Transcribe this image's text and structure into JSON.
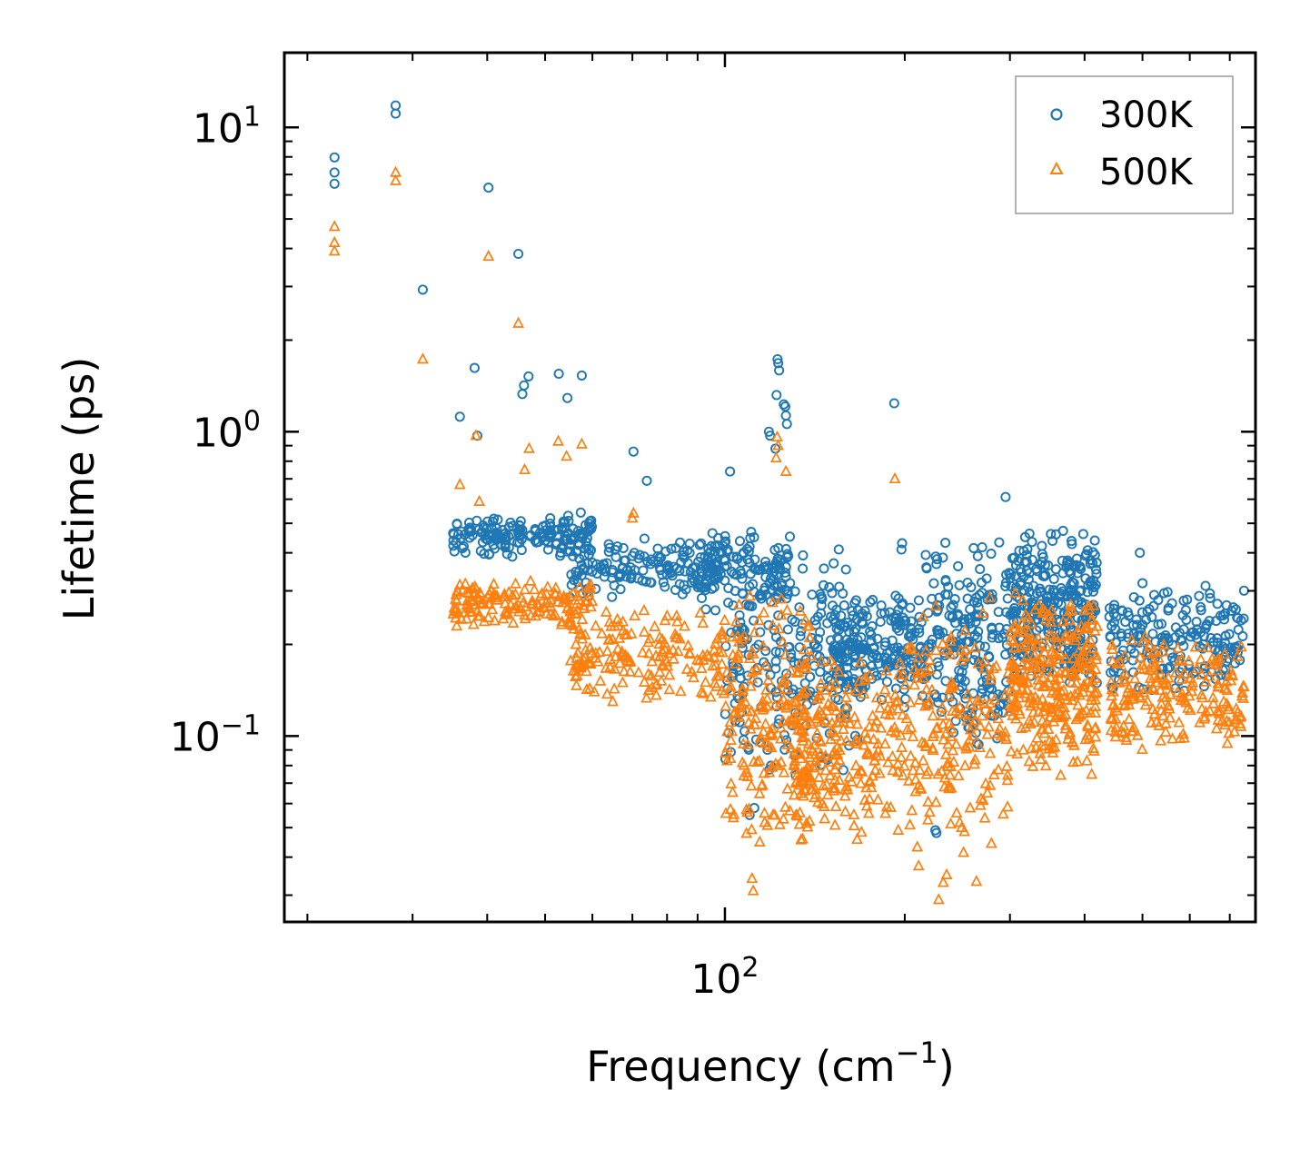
{
  "chart_data": {
    "type": "scatter",
    "title": "",
    "xlabel": "Frequency (cm",
    "xlabel_sup": "−1",
    "xlabel_suffix": ")",
    "ylabel": "Lifetime (ps)",
    "xscale": "log",
    "yscale": "log",
    "xlim": [
      18.3,
      773
    ],
    "ylim": [
      0.0245,
      17.6
    ],
    "xticks": [
      {
        "base": "10",
        "exp": "2",
        "value": 100
      }
    ],
    "yticks": [
      {
        "base": "10",
        "exp": "1",
        "value": 10
      },
      {
        "base": "10",
        "exp": "0",
        "value": 1
      },
      {
        "base": "10",
        "exp": "−1",
        "value": 0.1
      }
    ],
    "legend": {
      "position": "top-right"
    },
    "series": [
      {
        "name": "300K",
        "marker": "circle",
        "color": "#1f77b4",
        "points": [
          [
            22.2,
            7.97
          ],
          [
            22.2,
            7.11
          ],
          [
            22.2,
            6.53
          ],
          [
            28.1,
            11.8
          ],
          [
            28.1,
            11.1
          ],
          [
            31.2,
            2.93
          ],
          [
            38.1,
            1.62
          ],
          [
            40.2,
            6.34
          ],
          [
            45.1,
            3.84
          ],
          [
            45.8,
            1.33
          ],
          [
            46.1,
            1.42
          ],
          [
            46.9,
            1.52
          ],
          [
            52.7,
            1.55
          ],
          [
            54.5,
            1.29
          ],
          [
            57.6,
            1.53
          ],
          [
            36.0,
            1.12
          ],
          [
            38.5,
            0.97
          ],
          [
            70.3,
            0.86
          ],
          [
            74.0,
            0.69
          ],
          [
            102.0,
            0.74
          ],
          [
            122.5,
            1.73
          ],
          [
            122.8,
            1.68
          ],
          [
            123.2,
            1.59
          ],
          [
            122.0,
            1.32
          ],
          [
            125.5,
            1.23
          ],
          [
            126.2,
            1.21
          ],
          [
            126.5,
            1.13
          ],
          [
            127.0,
            1.06
          ],
          [
            118.5,
            1.0
          ],
          [
            119.0,
            0.97
          ],
          [
            121.5,
            0.88
          ],
          [
            192.0,
            1.24
          ],
          [
            295.0,
            0.61
          ],
          [
            495.0,
            0.4
          ],
          [
            198.0,
            0.43
          ],
          [
            197.5,
            0.41
          ],
          [
            225.0,
            0.049
          ],
          [
            226.0,
            0.048
          ],
          [
            110.0,
            0.055
          ],
          [
            112.0,
            0.058
          ]
        ],
        "bands": [
          {
            "x": [
              35,
              60
            ],
            "ylo": 0.38,
            "yhi": 0.55,
            "n": 170
          },
          {
            "x": [
              55,
              100
            ],
            "ylo": 0.28,
            "yhi": 0.45,
            "n": 160
          },
          {
            "x": [
              90,
              130
            ],
            "ylo": 0.25,
            "yhi": 0.5,
            "n": 120
          },
          {
            "x": [
              100,
              170
            ],
            "ylo": 0.07,
            "yhi": 0.45,
            "n": 230
          },
          {
            "x": [
              150,
              215
            ],
            "ylo": 0.12,
            "yhi": 0.3,
            "n": 190
          },
          {
            "x": [
              215,
              300
            ],
            "ylo": 0.085,
            "yhi": 0.48,
            "n": 200
          },
          {
            "x": [
              300,
              420
            ],
            "ylo": 0.14,
            "yhi": 0.5,
            "n": 300
          },
          {
            "x": [
              440,
              740
            ],
            "ylo": 0.13,
            "yhi": 0.34,
            "n": 200
          }
        ]
      },
      {
        "name": "500K",
        "marker": "triangle",
        "color": "#ff7f0e",
        "points": [
          [
            22.2,
            4.72
          ],
          [
            22.2,
            4.18
          ],
          [
            22.2,
            3.92
          ],
          [
            28.1,
            7.11
          ],
          [
            28.1,
            6.68
          ],
          [
            31.2,
            1.73
          ],
          [
            38.3,
            0.97
          ],
          [
            38.8,
            0.59
          ],
          [
            40.2,
            3.77
          ],
          [
            45.1,
            2.27
          ],
          [
            46.2,
            0.75
          ],
          [
            47.0,
            0.88
          ],
          [
            52.6,
            0.93
          ],
          [
            54.3,
            0.83
          ],
          [
            57.6,
            0.91
          ],
          [
            36.0,
            0.67
          ],
          [
            70.3,
            0.54
          ],
          [
            70.0,
            0.52
          ],
          [
            192.5,
            0.7
          ],
          [
            122.3,
            0.96
          ],
          [
            122.8,
            0.9
          ],
          [
            121.8,
            0.82
          ],
          [
            126.5,
            0.74
          ],
          [
            111.0,
            0.034
          ],
          [
            111.5,
            0.031
          ],
          [
            228.0,
            0.029
          ],
          [
            232.0,
            0.033
          ],
          [
            235.0,
            0.035
          ],
          [
            204.0,
            0.051
          ],
          [
            195.0,
            0.049
          ]
        ],
        "bands": [
          {
            "x": [
              35,
              60
            ],
            "ylo": 0.22,
            "yhi": 0.33,
            "n": 150
          },
          {
            "x": [
              55,
              100
            ],
            "ylo": 0.12,
            "yhi": 0.28,
            "n": 170
          },
          {
            "x": [
              100,
              140
            ],
            "ylo": 0.04,
            "yhi": 0.3,
            "n": 200
          },
          {
            "x": [
              130,
              200
            ],
            "ylo": 0.045,
            "yhi": 0.2,
            "n": 220
          },
          {
            "x": [
              200,
              300
            ],
            "ylo": 0.032,
            "yhi": 0.3,
            "n": 180
          },
          {
            "x": [
              300,
              420
            ],
            "ylo": 0.072,
            "yhi": 0.3,
            "n": 300
          },
          {
            "x": [
              440,
              740
            ],
            "ylo": 0.085,
            "yhi": 0.22,
            "n": 200
          }
        ]
      }
    ]
  }
}
